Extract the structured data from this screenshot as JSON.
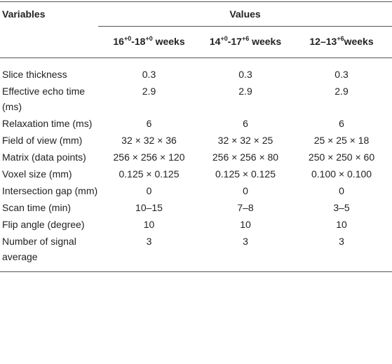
{
  "table": {
    "header": {
      "variables": "Variables",
      "values": "Values"
    },
    "columns": [
      [
        {
          "text": "16"
        },
        {
          "text": "+0",
          "sup": true
        },
        {
          "text": "-18"
        },
        {
          "text": "+0",
          "sup": true
        },
        {
          "text": " weeks"
        }
      ],
      [
        {
          "text": "14"
        },
        {
          "text": "+0",
          "sup": true
        },
        {
          "text": "-17"
        },
        {
          "text": "+6",
          "sup": true
        },
        {
          "text": " weeks"
        }
      ],
      [
        {
          "text": "12–13"
        },
        {
          "text": "+6",
          "sup": true
        },
        {
          "text": "weeks"
        }
      ]
    ],
    "rows": [
      [
        "Slice thickness",
        "0.3",
        "0.3",
        "0.3"
      ],
      [
        "Effective echo time (ms)",
        "2.9",
        "2.9",
        "2.9"
      ],
      [
        "Relaxation time (ms)",
        "6",
        "6",
        "6"
      ],
      [
        "Field of view (mm)",
        "32 × 32 × 36",
        "32 × 32 × 25",
        "25 × 25 × 18"
      ],
      [
        "Matrix (data points)",
        "256 × 256 × 120",
        "256 × 256 × 80",
        "250 × 250 × 60"
      ],
      [
        "Voxel size (mm)",
        "0.125 × 0.125",
        "0.125 × 0.125",
        "0.100 × 0.100"
      ],
      [
        "Intersection gap (mm)",
        "0",
        "0",
        "0"
      ],
      [
        "Scan time (min)",
        "10–15",
        "7–8",
        "3–5"
      ],
      [
        "Flip angle (degree)",
        "10",
        "10",
        "10"
      ],
      [
        "Number of signal average",
        "3",
        "3",
        "3"
      ]
    ]
  }
}
